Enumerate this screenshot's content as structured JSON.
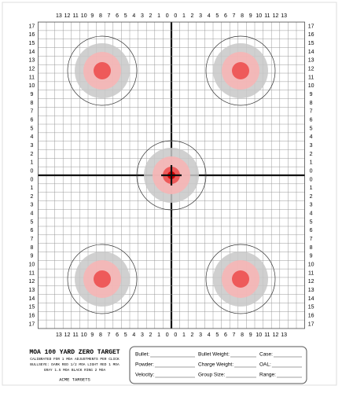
{
  "top_labels": [
    "13",
    "12",
    "11",
    "10",
    "9",
    "8",
    "7",
    "6",
    "5",
    "4",
    "3",
    "2",
    "1",
    "0",
    "0",
    "1",
    "2",
    "3",
    "4",
    "5",
    "6",
    "7",
    "8",
    "9",
    "10",
    "11",
    "12",
    "13"
  ],
  "side_labels": [
    "17",
    "16",
    "15",
    "14",
    "13",
    "12",
    "11",
    "10",
    "9",
    "8",
    "7",
    "6",
    "5",
    "4",
    "3",
    "2",
    "1",
    "0",
    "0",
    "1",
    "2",
    "3",
    "4",
    "5",
    "6",
    "7",
    "8",
    "9",
    "10",
    "11",
    "12",
    "13",
    "14",
    "15",
    "16",
    "17"
  ],
  "footer": {
    "title": "MOA 100 YARD ZERO TARGET",
    "lines": [
      "CALIBRATED FOR 1 MOA ADJUSTMENTS PER CLICK",
      "BULLSEYE: DARK RED 1/2 MOA LIGHT RED 1 MOA",
      "GRAY 1.5 MOA BLACK RING 2 MOA"
    ],
    "brand": "ACME TARGETS"
  },
  "form": {
    "rows": [
      [
        "Bullet:",
        "Bullet Weight:",
        "Case:"
      ],
      [
        "Powder:",
        "Charge Weight:",
        "OAL:"
      ],
      [
        "Velocity:",
        "Group Size:",
        "Range:"
      ]
    ]
  }
}
